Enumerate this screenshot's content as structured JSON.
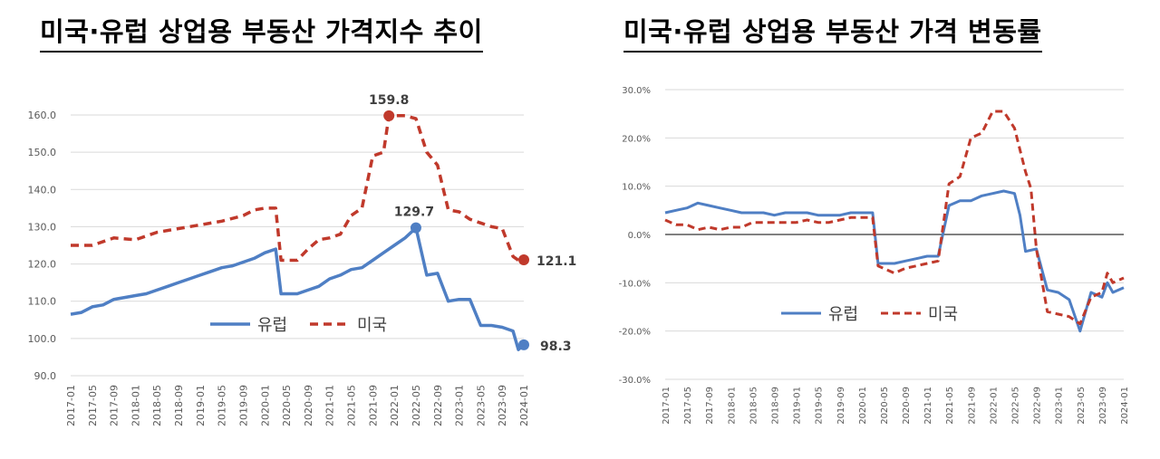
{
  "titles": {
    "left": "미국·유럽 상업용 부동산 가격지수 추이",
    "right": "미국·유럽 상업용 부동산 가격 변동률"
  },
  "colors": {
    "eu": "#4f7fc4",
    "us": "#c0392b",
    "zero_line": "#000000"
  },
  "chart_data": [
    {
      "type": "line",
      "title": "미국·유럽 상업용 부동산 가격지수 추이",
      "ylim": [
        90,
        160
      ],
      "yticks": [
        "160.0",
        "150.0",
        "140.0",
        "130.0",
        "120.0",
        "110.0",
        "100.0",
        "90.0"
      ],
      "x_labels": [
        "2017-01",
        "2017-05",
        "2017-09",
        "2018-01",
        "2018-05",
        "2018-09",
        "2019-01",
        "2019-05",
        "2019-09",
        "2020-01",
        "2020-05",
        "2020-09",
        "2021-01",
        "2021-05",
        "2021-09",
        "2022-01",
        "2022-05",
        "2022-09",
        "2023-01",
        "2023-05",
        "2023-09",
        "2024-01"
      ],
      "legend": [
        "유럽",
        "미국"
      ],
      "legend_placement": "bottom-center",
      "grid": true,
      "series": [
        {
          "name": "유럽",
          "style": "solid",
          "points": [
            [
              "2017-01",
              106.5
            ],
            [
              "2017-03",
              107
            ],
            [
              "2017-05",
              108.5
            ],
            [
              "2017-07",
              109
            ],
            [
              "2017-09",
              110.5
            ],
            [
              "2017-11",
              111
            ],
            [
              "2018-01",
              111.5
            ],
            [
              "2018-03",
              112
            ],
            [
              "2018-05",
              113
            ],
            [
              "2018-07",
              114
            ],
            [
              "2018-09",
              115
            ],
            [
              "2018-11",
              116
            ],
            [
              "2019-01",
              117
            ],
            [
              "2019-03",
              118
            ],
            [
              "2019-05",
              119
            ],
            [
              "2019-07",
              119.5
            ],
            [
              "2019-09",
              120.5
            ],
            [
              "2019-11",
              121.5
            ],
            [
              "2020-01",
              123
            ],
            [
              "2020-03",
              124
            ],
            [
              "2020-04",
              112
            ],
            [
              "2020-07",
              112
            ],
            [
              "2020-09",
              113
            ],
            [
              "2020-11",
              114
            ],
            [
              "2021-01",
              116
            ],
            [
              "2021-03",
              117
            ],
            [
              "2021-05",
              118.5
            ],
            [
              "2021-07",
              119
            ],
            [
              "2021-09",
              121
            ],
            [
              "2021-11",
              123
            ],
            [
              "2022-01",
              125
            ],
            [
              "2022-03",
              127
            ],
            [
              "2022-05",
              129.7
            ],
            [
              "2022-07",
              117
            ],
            [
              "2022-09",
              117.5
            ],
            [
              "2022-11",
              110
            ],
            [
              "2023-01",
              110.5
            ],
            [
              "2023-03",
              110.5
            ],
            [
              "2023-05",
              103.5
            ],
            [
              "2023-07",
              103.5
            ],
            [
              "2023-09",
              103
            ],
            [
              "2023-11",
              102
            ],
            [
              "2023-12",
              97
            ],
            [
              "2024-01",
              98.3
            ]
          ]
        },
        {
          "name": "미국",
          "style": "dashed",
          "points": [
            [
              "2017-01",
              125
            ],
            [
              "2017-05",
              125
            ],
            [
              "2017-09",
              127
            ],
            [
              "2018-01",
              126.5
            ],
            [
              "2018-05",
              128.5
            ],
            [
              "2018-09",
              129.5
            ],
            [
              "2019-01",
              130.5
            ],
            [
              "2019-05",
              131.5
            ],
            [
              "2019-09",
              133
            ],
            [
              "2019-11",
              134.5
            ],
            [
              "2020-01",
              135
            ],
            [
              "2020-03",
              135
            ],
            [
              "2020-04",
              121
            ],
            [
              "2020-07",
              121
            ],
            [
              "2020-09",
              124
            ],
            [
              "2020-11",
              126.5
            ],
            [
              "2021-01",
              127
            ],
            [
              "2021-03",
              128
            ],
            [
              "2021-05",
              133
            ],
            [
              "2021-07",
              135
            ],
            [
              "2021-09",
              149
            ],
            [
              "2021-11",
              150
            ],
            [
              "2021-12",
              159.8
            ],
            [
              "2022-03",
              159.8
            ],
            [
              "2022-05",
              159
            ],
            [
              "2022-07",
              150
            ],
            [
              "2022-09",
              146.5
            ],
            [
              "2022-11",
              134.5
            ],
            [
              "2023-01",
              134
            ],
            [
              "2023-03",
              132
            ],
            [
              "2023-05",
              131
            ],
            [
              "2023-07",
              130
            ],
            [
              "2023-09",
              129.5
            ],
            [
              "2023-11",
              122
            ],
            [
              "2023-12",
              121
            ],
            [
              "2024-01",
              121.1
            ]
          ]
        }
      ],
      "annotations": [
        {
          "text": "159.8",
          "series": "미국",
          "x": "2021-12",
          "y": 159.8
        },
        {
          "text": "129.7",
          "series": "유럽",
          "x": "2022-05",
          "y": 129.7
        },
        {
          "text": "121.1",
          "series": "미국",
          "x": "2024-01",
          "y": 121.1
        },
        {
          "text": "98.3",
          "series": "유럽",
          "x": "2024-01",
          "y": 98.3
        }
      ]
    },
    {
      "type": "line",
      "title": "미국·유럽 상업용 부동산 가격 변동률",
      "ylim": [
        -30,
        30
      ],
      "yticks": [
        "30.0%",
        "20.0%",
        "10.0%",
        "0.0%",
        "-10.0%",
        "-20.0%",
        "-30.0%"
      ],
      "x_labels": [
        "2017-01",
        "2017-05",
        "2017-09",
        "2018-01",
        "2018-05",
        "2018-09",
        "2019-01",
        "2019-05",
        "2019-09",
        "2020-01",
        "2020-05",
        "2020-09",
        "2021-01",
        "2021-05",
        "2021-09",
        "2022-01",
        "2022-05",
        "2022-09",
        "2023-01",
        "2023-05",
        "2023-09",
        "2024-01"
      ],
      "legend": [
        "유럽",
        "미국"
      ],
      "legend_placement": "center",
      "grid": true,
      "series": [
        {
          "name": "유럽",
          "style": "solid",
          "points": [
            [
              "2017-01",
              4.5
            ],
            [
              "2017-03",
              5
            ],
            [
              "2017-05",
              5.5
            ],
            [
              "2017-07",
              6.5
            ],
            [
              "2017-09",
              6
            ],
            [
              "2017-11",
              5.5
            ],
            [
              "2018-01",
              5
            ],
            [
              "2018-03",
              4.5
            ],
            [
              "2018-05",
              4.5
            ],
            [
              "2018-07",
              4.5
            ],
            [
              "2018-09",
              4
            ],
            [
              "2018-11",
              4.5
            ],
            [
              "2019-01",
              4.5
            ],
            [
              "2019-03",
              4.5
            ],
            [
              "2019-05",
              4
            ],
            [
              "2019-07",
              4
            ],
            [
              "2019-09",
              4
            ],
            [
              "2019-11",
              4.5
            ],
            [
              "2020-01",
              4.5
            ],
            [
              "2020-03",
              4.5
            ],
            [
              "2020-04",
              -6
            ],
            [
              "2020-07",
              -6
            ],
            [
              "2020-09",
              -5.5
            ],
            [
              "2020-11",
              -5
            ],
            [
              "2021-01",
              -4.5
            ],
            [
              "2021-03",
              -4.5
            ],
            [
              "2021-05",
              6
            ],
            [
              "2021-07",
              7
            ],
            [
              "2021-09",
              7
            ],
            [
              "2021-11",
              8
            ],
            [
              "2022-01",
              8.5
            ],
            [
              "2022-03",
              9
            ],
            [
              "2022-05",
              8.5
            ],
            [
              "2022-06",
              4
            ],
            [
              "2022-07",
              -3.5
            ],
            [
              "2022-09",
              -3
            ],
            [
              "2022-11",
              -11.5
            ],
            [
              "2023-01",
              -12
            ],
            [
              "2023-03",
              -13.5
            ],
            [
              "2023-05",
              -20
            ],
            [
              "2023-07",
              -12
            ],
            [
              "2023-09",
              -13
            ],
            [
              "2023-10",
              -10
            ],
            [
              "2023-11",
              -12
            ],
            [
              "2024-01",
              -11
            ]
          ]
        },
        {
          "name": "미국",
          "style": "dashed",
          "points": [
            [
              "2017-01",
              3
            ],
            [
              "2017-03",
              2
            ],
            [
              "2017-05",
              2
            ],
            [
              "2017-07",
              1
            ],
            [
              "2017-09",
              1.5
            ],
            [
              "2017-11",
              1
            ],
            [
              "2018-01",
              1.5
            ],
            [
              "2018-03",
              1.5
            ],
            [
              "2018-05",
              2.5
            ],
            [
              "2018-07",
              2.5
            ],
            [
              "2018-09",
              2.5
            ],
            [
              "2018-11",
              2.5
            ],
            [
              "2019-01",
              2.5
            ],
            [
              "2019-03",
              3
            ],
            [
              "2019-05",
              2.5
            ],
            [
              "2019-07",
              2.5
            ],
            [
              "2019-09",
              3
            ],
            [
              "2019-11",
              3.5
            ],
            [
              "2020-01",
              3.5
            ],
            [
              "2020-03",
              3.5
            ],
            [
              "2020-04",
              -6.5
            ],
            [
              "2020-07",
              -8
            ],
            [
              "2020-09",
              -7
            ],
            [
              "2020-11",
              -6.5
            ],
            [
              "2021-01",
              -6
            ],
            [
              "2021-03",
              -5.5
            ],
            [
              "2021-05",
              10.5
            ],
            [
              "2021-07",
              12
            ],
            [
              "2021-09",
              20
            ],
            [
              "2021-11",
              21
            ],
            [
              "2022-01",
              25.5
            ],
            [
              "2022-03",
              25.5
            ],
            [
              "2022-05",
              22
            ],
            [
              "2022-07",
              13
            ],
            [
              "2022-08",
              9.5
            ],
            [
              "2022-09",
              -3
            ],
            [
              "2022-11",
              -16
            ],
            [
              "2023-01",
              -16.5
            ],
            [
              "2023-03",
              -17
            ],
            [
              "2023-05",
              -18.5
            ],
            [
              "2023-07",
              -13
            ],
            [
              "2023-09",
              -12
            ],
            [
              "2023-10",
              -8
            ],
            [
              "2023-11",
              -10
            ],
            [
              "2024-01",
              -9
            ]
          ]
        }
      ]
    }
  ]
}
